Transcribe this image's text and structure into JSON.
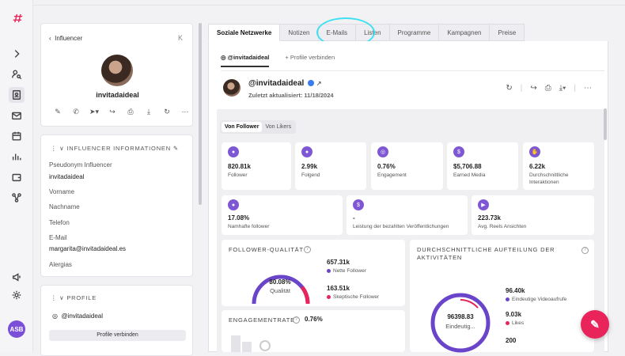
{
  "rail": {
    "logo": "⌗",
    "avatar_initials": "ASB"
  },
  "left": {
    "back_label": "Influencer",
    "collapse_label": "K",
    "profile_name": "invitadaideal",
    "info_title": "INFLUENCER INFORMATIONEN",
    "fields": [
      {
        "label": "Pseudonym Influencer",
        "value": "invitadaideal"
      },
      {
        "label": "Vorname",
        "value": ""
      },
      {
        "label": "Nachname",
        "value": ""
      },
      {
        "label": "Telefon",
        "value": ""
      },
      {
        "label": "E-Mail",
        "value": "margarita@invitadaideal.es"
      },
      {
        "label": "Alergias",
        "value": ""
      }
    ],
    "profiles_title": "PROFILE",
    "profile_handle": "@invitadaideal",
    "connect_button": "Profile verbinden"
  },
  "tabs": [
    "Soziale Netzwerke",
    "Notizen",
    "E-Mails",
    "Listen",
    "Programme",
    "Kampagnen",
    "Preise"
  ],
  "main": {
    "subtab_active": "@invitadaideal",
    "subtab_connect": "+ Profile verbinden",
    "account_name": "@invitadaideal",
    "updated": "Zuletzt aktualisiert: 11/18/2024",
    "segment": [
      "Von Follower",
      "Von Likers"
    ],
    "stats_row1": [
      {
        "value": "820.81k",
        "label": "Follower"
      },
      {
        "value": "2.99k",
        "label": "Folgend"
      },
      {
        "value": "0.76%",
        "label": "Engagement"
      },
      {
        "value": "$5,706.88",
        "label": "Earned Media"
      },
      {
        "value": "6.22k",
        "label": "Durchschnittliche Interaktionen"
      }
    ],
    "stats_row2": [
      {
        "value": "17.08%",
        "label": "Namhafte follower"
      },
      {
        "value": "-",
        "label": "Leistung der bezahlten Veröffentlichungen"
      },
      {
        "value": "223.73k",
        "label": "Avg. Reels Ansichten"
      }
    ],
    "quality": {
      "title": "FOLLOWER-QUALITÄT",
      "center_value": "80.08%",
      "center_label": "Qualität",
      "legend": [
        {
          "value": "657.31k",
          "label": "Nette Follower",
          "color": "#6b45c9"
        },
        {
          "value": "163.51k",
          "label": "Skeptische Follower",
          "color": "#e8245a"
        }
      ]
    },
    "engagement": {
      "title": "ENGAGEMENTRATE",
      "value": "0.76%"
    },
    "views": {
      "title": "DURCHSCHNITTLICHE AUFTEILUNG DER AKTIVITÄTEN",
      "center_value": "96398.83",
      "center_label": "Eindeutig...",
      "legend": [
        {
          "value": "96.40k",
          "label": "Eindeutige Videoaufrufe",
          "color": "#6b45c9"
        },
        {
          "value": "9.03k",
          "label": "Likes",
          "color": "#e8245a"
        },
        {
          "value": "200",
          "label": ""
        }
      ]
    }
  },
  "colors": {
    "accent": "#e8245a",
    "purple": "#7e57d4",
    "highlight": "#3fe0f0"
  }
}
